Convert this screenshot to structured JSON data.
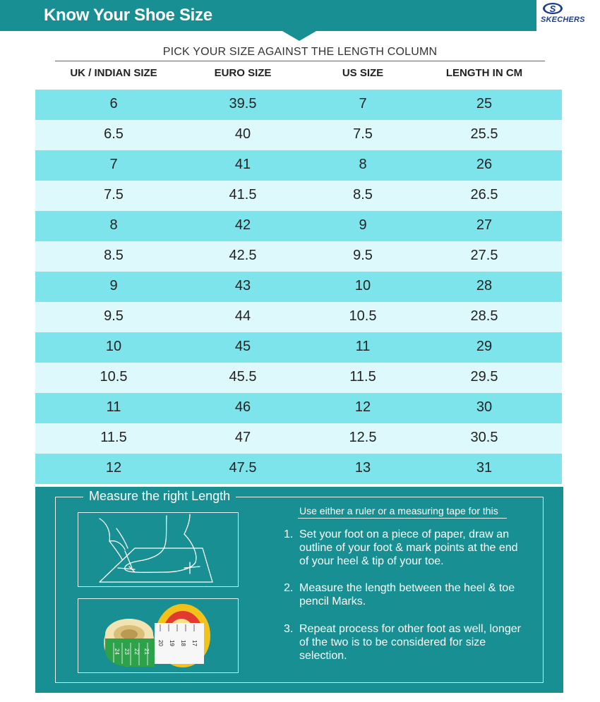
{
  "header": {
    "title": "Know Your Shoe Size",
    "brand": "SKECHERS",
    "brand_logo_color": "#1f3d8a",
    "header_color": "#188f92"
  },
  "table": {
    "instruction": "PICK YOUR SIZE AGAINST THE LENGTH COLUMN",
    "columns": [
      "UK / INDIAN SIZE",
      "EURO SIZE",
      "US SIZE",
      "LENGTH IN CM"
    ],
    "rows": [
      [
        "6",
        "39.5",
        "7",
        "25"
      ],
      [
        "6.5",
        "40",
        "7.5",
        "25.5"
      ],
      [
        "7",
        "41",
        "8",
        "26"
      ],
      [
        "7.5",
        "41.5",
        "8.5",
        "26.5"
      ],
      [
        "8",
        "42",
        "9",
        "27"
      ],
      [
        "8.5",
        "42.5",
        "9.5",
        "27.5"
      ],
      [
        "9",
        "43",
        "10",
        "28"
      ],
      [
        "9.5",
        "44",
        "10.5",
        "28.5"
      ],
      [
        "10",
        "45",
        "11",
        "29"
      ],
      [
        "10.5",
        "45.5",
        "11.5",
        "29.5"
      ],
      [
        "11",
        "46",
        "12",
        "30"
      ],
      [
        "11.5",
        "47",
        "12.5",
        "30.5"
      ],
      [
        "12",
        "47.5",
        "13",
        "31"
      ]
    ],
    "row_colors": {
      "dark": "#7de4ec",
      "light": "#ddf9fb"
    }
  },
  "measure": {
    "title": "Measure the right Length",
    "note": "Use either a ruler or a measuring tape for this",
    "steps": [
      {
        "num": "1.",
        "text": "Set your foot on a piece of paper, draw an outline of your foot & mark points at the end of your heel & tip of your toe."
      },
      {
        "num": "2.",
        "text": "Measure the length between the heel & toe pencil Marks."
      },
      {
        "num": "3.",
        "text": "Repeat process for other foot as well, longer of the two is to be considered for size selection."
      }
    ],
    "tape_labels": [
      "20",
      "19",
      "18",
      "17",
      "24",
      "23",
      "22",
      "21"
    ],
    "images": [
      "foot-drawing-illustration",
      "measuring-tape-image"
    ]
  }
}
